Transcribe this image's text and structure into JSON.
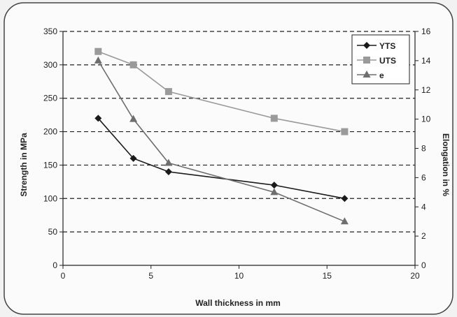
{
  "chart_data": {
    "type": "line",
    "title": "",
    "xlabel": "Wall thickness in mm",
    "ylabel_left": "Strength in MPa",
    "ylabel_right": "Elongation in %",
    "xlim": [
      0,
      20
    ],
    "ylim_left": [
      0,
      350
    ],
    "ylim_right": [
      0,
      16
    ],
    "xticks": [
      "0",
      "5",
      "10",
      "15",
      "20"
    ],
    "yticks_left": [
      "0",
      "50",
      "100",
      "150",
      "200",
      "250",
      "300",
      "350"
    ],
    "yticks_right": [
      "0",
      "2",
      "4",
      "6",
      "8",
      "10",
      "12",
      "14",
      "16"
    ],
    "grid": "horizontal dashed",
    "legend_position": "top-right",
    "series": [
      {
        "name": "YTS",
        "axis": "left",
        "marker": "diamond",
        "color": "#1a1a1a",
        "x": [
          2,
          4,
          6,
          12,
          16
        ],
        "y": [
          220,
          160,
          140,
          120,
          100
        ]
      },
      {
        "name": "UTS",
        "axis": "left",
        "marker": "square",
        "color": "#9a9a9a",
        "x": [
          2,
          4,
          6,
          12,
          16
        ],
        "y": [
          320,
          300,
          260,
          220,
          200
        ]
      },
      {
        "name": "e",
        "axis": "right",
        "marker": "triangle",
        "color": "#6e6e6e",
        "x": [
          2,
          4,
          6,
          12,
          16
        ],
        "y": [
          14,
          10,
          7,
          5,
          3
        ]
      }
    ]
  }
}
